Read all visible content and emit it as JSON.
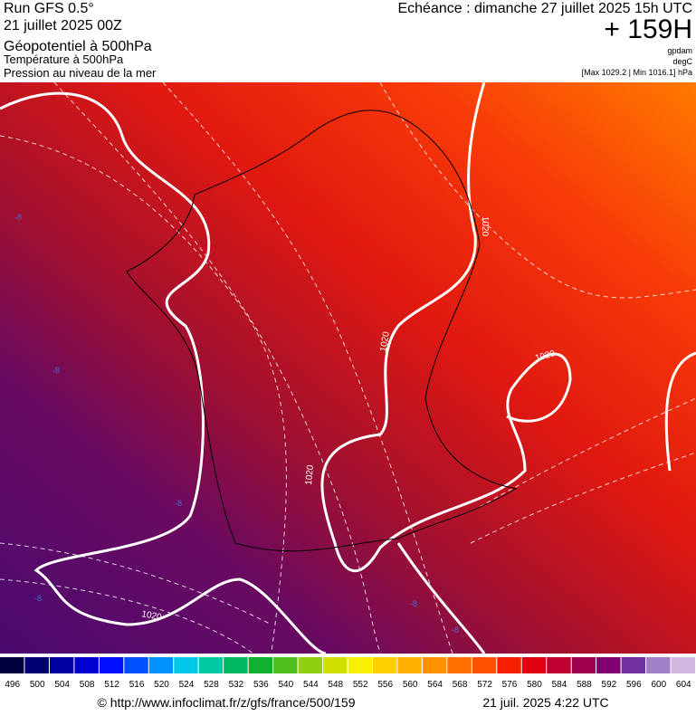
{
  "header": {
    "run": "Run GFS 0.5°",
    "date": "21 juillet 2025 00Z",
    "fields": [
      "Géopotentiel à 500hPa",
      "Température à 500hPa",
      "Pression au niveau de la mer"
    ],
    "echeance": "Echéance : dimanche 27 juillet 2025 15h UTC",
    "lead": "+ 159H",
    "units": [
      "gpdam",
      "degC"
    ],
    "range": "[Max 1029.2 | Min 1016.1] hPa"
  },
  "map": {
    "pressure_labels": [
      "1020",
      "1020",
      "1020",
      "1020",
      "1020"
    ],
    "temperature_labels": [
      "-8",
      "-8",
      "-8",
      "-8",
      "-8",
      "-8"
    ]
  },
  "scale": {
    "values": [
      496,
      500,
      504,
      508,
      512,
      516,
      520,
      524,
      528,
      532,
      536,
      540,
      544,
      548,
      552,
      556,
      560,
      564,
      568,
      572,
      576,
      580,
      584,
      588,
      592,
      596,
      600,
      604
    ],
    "colors": [
      "#00003c",
      "#000070",
      "#0000a0",
      "#0000d0",
      "#0010ff",
      "#0050ff",
      "#0090ff",
      "#00c8e8",
      "#00c8a0",
      "#00b860",
      "#10b030",
      "#50c020",
      "#90d010",
      "#d0e000",
      "#f8f000",
      "#ffd000",
      "#ffb000",
      "#ff9000",
      "#ff7000",
      "#ff5000",
      "#f82000",
      "#e00010",
      "#c00030",
      "#a00050",
      "#800070",
      "#7030a0",
      "#a080c8",
      "#d0b8e0"
    ]
  },
  "footer": {
    "url": "© http://www.infoclimat.fr/z/gfs/france/500/159",
    "time": "21 juil. 2025  4:22 UTC"
  }
}
